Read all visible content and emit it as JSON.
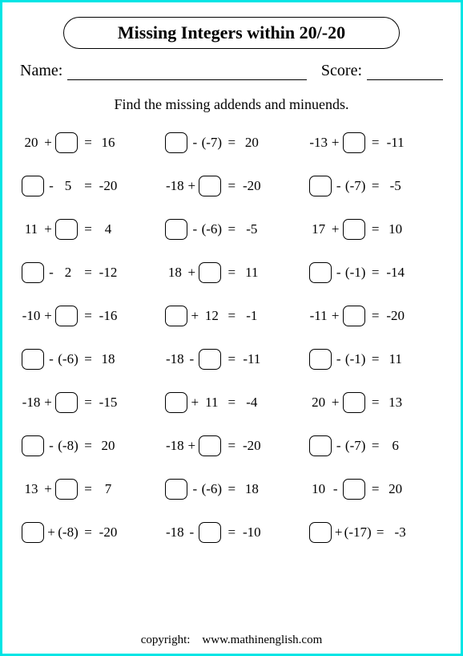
{
  "title": "Missing Integers within 20/-20",
  "name_label": "Name:",
  "score_label": "Score:",
  "instruction": "Find the missing addends and minuends.",
  "footer_label": "copyright:",
  "footer_site": "www.mathinenglish.com",
  "problems": [
    [
      [
        "20",
        "+",
        "□",
        "=",
        "16"
      ],
      [
        "□",
        "-",
        "(-7)",
        "=",
        "20"
      ],
      [
        "-13",
        "+",
        "□",
        "=",
        "-11"
      ]
    ],
    [
      [
        "□",
        "-",
        "5",
        "=",
        "-20"
      ],
      [
        "-18",
        "+",
        "□",
        "=",
        "-20"
      ],
      [
        "□",
        "-",
        "(-7)",
        "=",
        "-5"
      ]
    ],
    [
      [
        "11",
        "+",
        "□",
        "=",
        "4"
      ],
      [
        "□",
        "-",
        "(-6)",
        "=",
        "-5"
      ],
      [
        "17",
        "+",
        "□",
        "=",
        "10"
      ]
    ],
    [
      [
        "□",
        "-",
        "2",
        "=",
        "-12"
      ],
      [
        "18",
        "+",
        "□",
        "=",
        "11"
      ],
      [
        "□",
        "-",
        "(-1)",
        "=",
        "-14"
      ]
    ],
    [
      [
        "-10",
        "+",
        "□",
        "=",
        "-16"
      ],
      [
        "□",
        "+",
        "12",
        "=",
        "-1"
      ],
      [
        "-11",
        "+",
        "□",
        "=",
        "-20"
      ]
    ],
    [
      [
        "□",
        "-",
        "(-6)",
        "=",
        "18"
      ],
      [
        "-18",
        "-",
        "□",
        "=",
        "-11"
      ],
      [
        "□",
        "-",
        "(-1)",
        "=",
        "11"
      ]
    ],
    [
      [
        "-18",
        "+",
        "□",
        "=",
        "-15"
      ],
      [
        "□",
        "+",
        "11",
        "=",
        "-4"
      ],
      [
        "20",
        "+",
        "□",
        "=",
        "13"
      ]
    ],
    [
      [
        "□",
        "-",
        "(-8)",
        "=",
        "20"
      ],
      [
        "-18",
        "+",
        "□",
        "=",
        "-20"
      ],
      [
        "□",
        "-",
        "(-7)",
        "=",
        "6"
      ]
    ],
    [
      [
        "13",
        "+",
        "□",
        "=",
        "7"
      ],
      [
        "□",
        "-",
        "(-6)",
        "=",
        "18"
      ],
      [
        "10",
        "-",
        "□",
        "=",
        "20"
      ]
    ],
    [
      [
        "□",
        "+",
        "(-8)",
        "=",
        "-20"
      ],
      [
        "-18",
        "-",
        "□",
        "=",
        "-10"
      ],
      [
        "□",
        "+",
        "(-17)",
        "=",
        "-3"
      ]
    ]
  ]
}
